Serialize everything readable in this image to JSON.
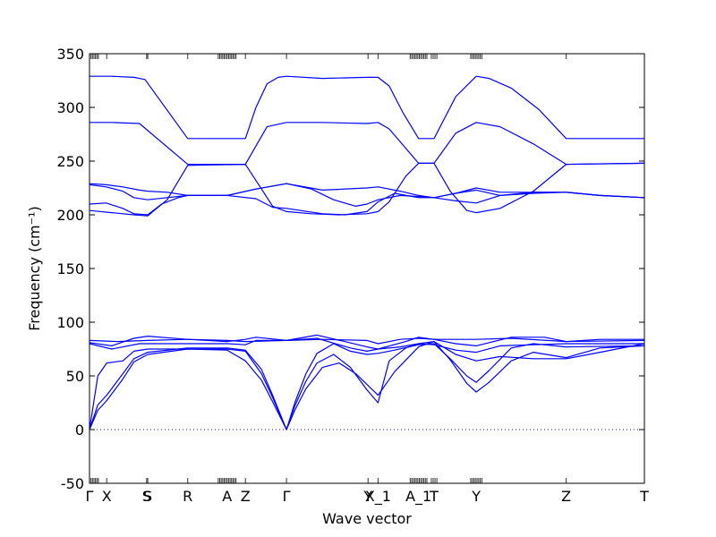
{
  "chart_data": {
    "type": "line",
    "title": "",
    "xlabel": "Wave vector",
    "ylabel": "Frequency (cm⁻¹)",
    "ylim": [
      -50,
      350
    ],
    "yticks": [
      -50,
      0,
      50,
      100,
      150,
      200,
      250,
      300,
      350
    ],
    "xlim": [
      0,
      1
    ],
    "grid": false,
    "line_color": "#0000ff",
    "zero_line_color": "#0000ff",
    "path_labels": [
      {
        "label": "Γ",
        "x": 0.0
      },
      {
        "label": "X",
        "x": 0.031
      },
      {
        "label": "S",
        "x": 0.103
      },
      {
        "label": "S",
        "x": 0.105
      },
      {
        "label": "R",
        "x": 0.177
      },
      {
        "label": "A",
        "x": 0.248
      },
      {
        "label": "Z",
        "x": 0.281
      },
      {
        "label": "Γ",
        "x": 0.355
      },
      {
        "label": "Y",
        "x": 0.502
      },
      {
        "label": "X_1",
        "x": 0.52
      },
      {
        "label": "A_1",
        "x": 0.593
      },
      {
        "label": "T",
        "x": 0.621
      },
      {
        "label": "Y",
        "x": 0.697
      },
      {
        "label": "Z",
        "x": 0.859
      },
      {
        "label": "T",
        "x": 1.0
      }
    ],
    "series": [
      {
        "points": [
          [
            0,
            329
          ],
          [
            0.04,
            329
          ],
          [
            0.08,
            328
          ],
          [
            0.1,
            326
          ],
          [
            0.177,
            271
          ],
          [
            0.281,
            271
          ],
          [
            0.3,
            300
          ],
          [
            0.32,
            322
          ],
          [
            0.34,
            328
          ],
          [
            0.355,
            329
          ],
          [
            0.42,
            327
          ],
          [
            0.5,
            328
          ],
          [
            0.52,
            328
          ],
          [
            0.54,
            320
          ],
          [
            0.565,
            295
          ],
          [
            0.593,
            271
          ],
          [
            0.621,
            271
          ],
          [
            0.66,
            310
          ],
          [
            0.697,
            329
          ],
          [
            0.72,
            327
          ],
          [
            0.76,
            318
          ],
          [
            0.81,
            298
          ],
          [
            0.859,
            271
          ],
          [
            1.0,
            271
          ]
        ]
      },
      {
        "points": [
          [
            0,
            286
          ],
          [
            0.04,
            286
          ],
          [
            0.09,
            285
          ],
          [
            0.177,
            247
          ],
          [
            0.281,
            247
          ],
          [
            0.32,
            282
          ],
          [
            0.355,
            286
          ],
          [
            0.42,
            286
          ],
          [
            0.5,
            285
          ],
          [
            0.52,
            286
          ],
          [
            0.54,
            280
          ],
          [
            0.593,
            248
          ],
          [
            0.621,
            248
          ],
          [
            0.66,
            276
          ],
          [
            0.697,
            286
          ],
          [
            0.74,
            282
          ],
          [
            0.8,
            266
          ],
          [
            0.859,
            247
          ],
          [
            1.0,
            248
          ]
        ]
      },
      {
        "points": [
          [
            0,
            229
          ],
          [
            0.03,
            228
          ],
          [
            0.06,
            226
          ],
          [
            0.09,
            223
          ],
          [
            0.105,
            222
          ],
          [
            0.14,
            221
          ],
          [
            0.177,
            218
          ],
          [
            0.248,
            218
          ],
          [
            0.3,
            224
          ],
          [
            0.355,
            229
          ],
          [
            0.42,
            223
          ],
          [
            0.5,
            225
          ],
          [
            0.52,
            226
          ],
          [
            0.56,
            222
          ],
          [
            0.593,
            218
          ],
          [
            0.621,
            216
          ],
          [
            0.66,
            220
          ],
          [
            0.697,
            225
          ],
          [
            0.74,
            221
          ],
          [
            0.8,
            221
          ],
          [
            0.859,
            221
          ],
          [
            0.92,
            218
          ],
          [
            1.0,
            216
          ]
        ]
      },
      {
        "points": [
          [
            0,
            228
          ],
          [
            0.03,
            226
          ],
          [
            0.06,
            222
          ],
          [
            0.08,
            216
          ],
          [
            0.105,
            214
          ],
          [
            0.14,
            216
          ],
          [
            0.177,
            218
          ],
          [
            0.248,
            218
          ],
          [
            0.3,
            224
          ],
          [
            0.355,
            229
          ],
          [
            0.4,
            224
          ],
          [
            0.44,
            214
          ],
          [
            0.48,
            208
          ],
          [
            0.5,
            210
          ],
          [
            0.52,
            214
          ],
          [
            0.56,
            218
          ],
          [
            0.593,
            217
          ],
          [
            0.621,
            216
          ],
          [
            0.66,
            220
          ],
          [
            0.697,
            223
          ],
          [
            0.74,
            218
          ],
          [
            0.8,
            220
          ],
          [
            0.859,
            221
          ],
          [
            0.92,
            218
          ],
          [
            1.0,
            216
          ]
        ]
      },
      {
        "points": [
          [
            0,
            210
          ],
          [
            0.03,
            211
          ],
          [
            0.06,
            206
          ],
          [
            0.08,
            201
          ],
          [
            0.105,
            200
          ],
          [
            0.13,
            210
          ],
          [
            0.16,
            216
          ],
          [
            0.177,
            218
          ],
          [
            0.248,
            218
          ],
          [
            0.3,
            215
          ],
          [
            0.33,
            207
          ],
          [
            0.355,
            206
          ],
          [
            0.38,
            204
          ],
          [
            0.42,
            201
          ],
          [
            0.46,
            200
          ],
          [
            0.5,
            203
          ],
          [
            0.52,
            212
          ],
          [
            0.55,
            220
          ],
          [
            0.593,
            216
          ],
          [
            0.621,
            216
          ],
          [
            0.66,
            213
          ],
          [
            0.697,
            211
          ],
          [
            0.74,
            218
          ],
          [
            0.8,
            221
          ],
          [
            0.859,
            221
          ],
          [
            0.92,
            218
          ],
          [
            1.0,
            216
          ]
        ]
      },
      {
        "points": [
          [
            0,
            204
          ],
          [
            0.04,
            202
          ],
          [
            0.08,
            200
          ],
          [
            0.105,
            199
          ],
          [
            0.14,
            214
          ],
          [
            0.177,
            246
          ],
          [
            0.281,
            247
          ],
          [
            0.31,
            224
          ],
          [
            0.33,
            208
          ],
          [
            0.355,
            203
          ],
          [
            0.4,
            201
          ],
          [
            0.45,
            200
          ],
          [
            0.5,
            201
          ],
          [
            0.52,
            203
          ],
          [
            0.54,
            212
          ],
          [
            0.57,
            236
          ],
          [
            0.593,
            248
          ],
          [
            0.621,
            248
          ],
          [
            0.65,
            222
          ],
          [
            0.68,
            204
          ],
          [
            0.697,
            202
          ],
          [
            0.74,
            206
          ],
          [
            0.8,
            222
          ],
          [
            0.859,
            247
          ],
          [
            1.0,
            248
          ]
        ]
      },
      {
        "points": [
          [
            0,
            83
          ],
          [
            0.05,
            82
          ],
          [
            0.105,
            83
          ],
          [
            0.177,
            84
          ],
          [
            0.248,
            83
          ],
          [
            0.281,
            82
          ],
          [
            0.355,
            83
          ],
          [
            0.42,
            84
          ],
          [
            0.5,
            83
          ],
          [
            0.52,
            80
          ],
          [
            0.56,
            84
          ],
          [
            0.593,
            85
          ],
          [
            0.621,
            84
          ],
          [
            0.697,
            84
          ],
          [
            0.76,
            85
          ],
          [
            0.859,
            82
          ],
          [
            0.92,
            84
          ],
          [
            1.0,
            84
          ]
        ]
      },
      {
        "points": [
          [
            0,
            81
          ],
          [
            0.04,
            78
          ],
          [
            0.08,
            85
          ],
          [
            0.105,
            87
          ],
          [
            0.177,
            84
          ],
          [
            0.248,
            82
          ],
          [
            0.281,
            84
          ],
          [
            0.3,
            86
          ],
          [
            0.355,
            83
          ],
          [
            0.41,
            88
          ],
          [
            0.46,
            82
          ],
          [
            0.5,
            77
          ],
          [
            0.52,
            75
          ],
          [
            0.57,
            82
          ],
          [
            0.593,
            86
          ],
          [
            0.621,
            84
          ],
          [
            0.66,
            80
          ],
          [
            0.697,
            78
          ],
          [
            0.76,
            86
          ],
          [
            0.82,
            86
          ],
          [
            0.859,
            82
          ],
          [
            1.0,
            83
          ]
        ]
      },
      {
        "points": [
          [
            0,
            80
          ],
          [
            0.04,
            75
          ],
          [
            0.09,
            80
          ],
          [
            0.14,
            80
          ],
          [
            0.177,
            80
          ],
          [
            0.248,
            80
          ],
          [
            0.281,
            79
          ],
          [
            0.3,
            83
          ],
          [
            0.355,
            83
          ],
          [
            0.41,
            85
          ],
          [
            0.47,
            76
          ],
          [
            0.5,
            73
          ],
          [
            0.52,
            75
          ],
          [
            0.56,
            77
          ],
          [
            0.593,
            80
          ],
          [
            0.621,
            79
          ],
          [
            0.66,
            74
          ],
          [
            0.697,
            72
          ],
          [
            0.74,
            78
          ],
          [
            0.8,
            79
          ],
          [
            0.859,
            80
          ],
          [
            1.0,
            80
          ]
        ]
      },
      {
        "points": [
          [
            0,
            0
          ],
          [
            0.015,
            23
          ],
          [
            0.031,
            32
          ],
          [
            0.06,
            52
          ],
          [
            0.08,
            66
          ],
          [
            0.105,
            72
          ],
          [
            0.177,
            76
          ],
          [
            0.248,
            76
          ],
          [
            0.281,
            74
          ],
          [
            0.31,
            56
          ],
          [
            0.33,
            32
          ],
          [
            0.355,
            0
          ],
          [
            0.37,
            25
          ],
          [
            0.39,
            52
          ],
          [
            0.41,
            71
          ],
          [
            0.44,
            80
          ],
          [
            0.47,
            73
          ],
          [
            0.5,
            70
          ],
          [
            0.52,
            71
          ],
          [
            0.55,
            74
          ],
          [
            0.593,
            79
          ],
          [
            0.621,
            80
          ],
          [
            0.65,
            66
          ],
          [
            0.68,
            50
          ],
          [
            0.697,
            44
          ],
          [
            0.72,
            55
          ],
          [
            0.76,
            76
          ],
          [
            0.8,
            80
          ],
          [
            0.859,
            77
          ],
          [
            1.0,
            78
          ]
        ]
      },
      {
        "points": [
          [
            0,
            0
          ],
          [
            0.015,
            18
          ],
          [
            0.031,
            27
          ],
          [
            0.06,
            47
          ],
          [
            0.08,
            63
          ],
          [
            0.105,
            70
          ],
          [
            0.177,
            75
          ],
          [
            0.248,
            74
          ],
          [
            0.261,
            70
          ],
          [
            0.281,
            64
          ],
          [
            0.31,
            46
          ],
          [
            0.33,
            26
          ],
          [
            0.355,
            0
          ],
          [
            0.37,
            18
          ],
          [
            0.39,
            38
          ],
          [
            0.42,
            58
          ],
          [
            0.45,
            62
          ],
          [
            0.48,
            52
          ],
          [
            0.5,
            42
          ],
          [
            0.52,
            32
          ],
          [
            0.55,
            54
          ],
          [
            0.593,
            77
          ],
          [
            0.621,
            82
          ],
          [
            0.65,
            65
          ],
          [
            0.68,
            43
          ],
          [
            0.697,
            35
          ],
          [
            0.72,
            44
          ],
          [
            0.76,
            64
          ],
          [
            0.8,
            72
          ],
          [
            0.859,
            67
          ],
          [
            0.92,
            76
          ],
          [
            1.0,
            78
          ]
        ]
      },
      {
        "points": [
          [
            0,
            0
          ],
          [
            0.015,
            50
          ],
          [
            0.031,
            62
          ],
          [
            0.06,
            64
          ],
          [
            0.08,
            73
          ],
          [
            0.105,
            75
          ],
          [
            0.177,
            75
          ],
          [
            0.248,
            75
          ],
          [
            0.281,
            73
          ],
          [
            0.31,
            52
          ],
          [
            0.33,
            30
          ],
          [
            0.355,
            0
          ],
          [
            0.37,
            22
          ],
          [
            0.39,
            45
          ],
          [
            0.41,
            62
          ],
          [
            0.44,
            70
          ],
          [
            0.47,
            58
          ],
          [
            0.5,
            37
          ],
          [
            0.52,
            25
          ],
          [
            0.54,
            64
          ],
          [
            0.57,
            76
          ],
          [
            0.593,
            80
          ],
          [
            0.621,
            82
          ],
          [
            0.66,
            70
          ],
          [
            0.697,
            64
          ],
          [
            0.74,
            68
          ],
          [
            0.8,
            66
          ],
          [
            0.859,
            66
          ],
          [
            0.92,
            72
          ],
          [
            1.0,
            80
          ]
        ]
      }
    ]
  }
}
